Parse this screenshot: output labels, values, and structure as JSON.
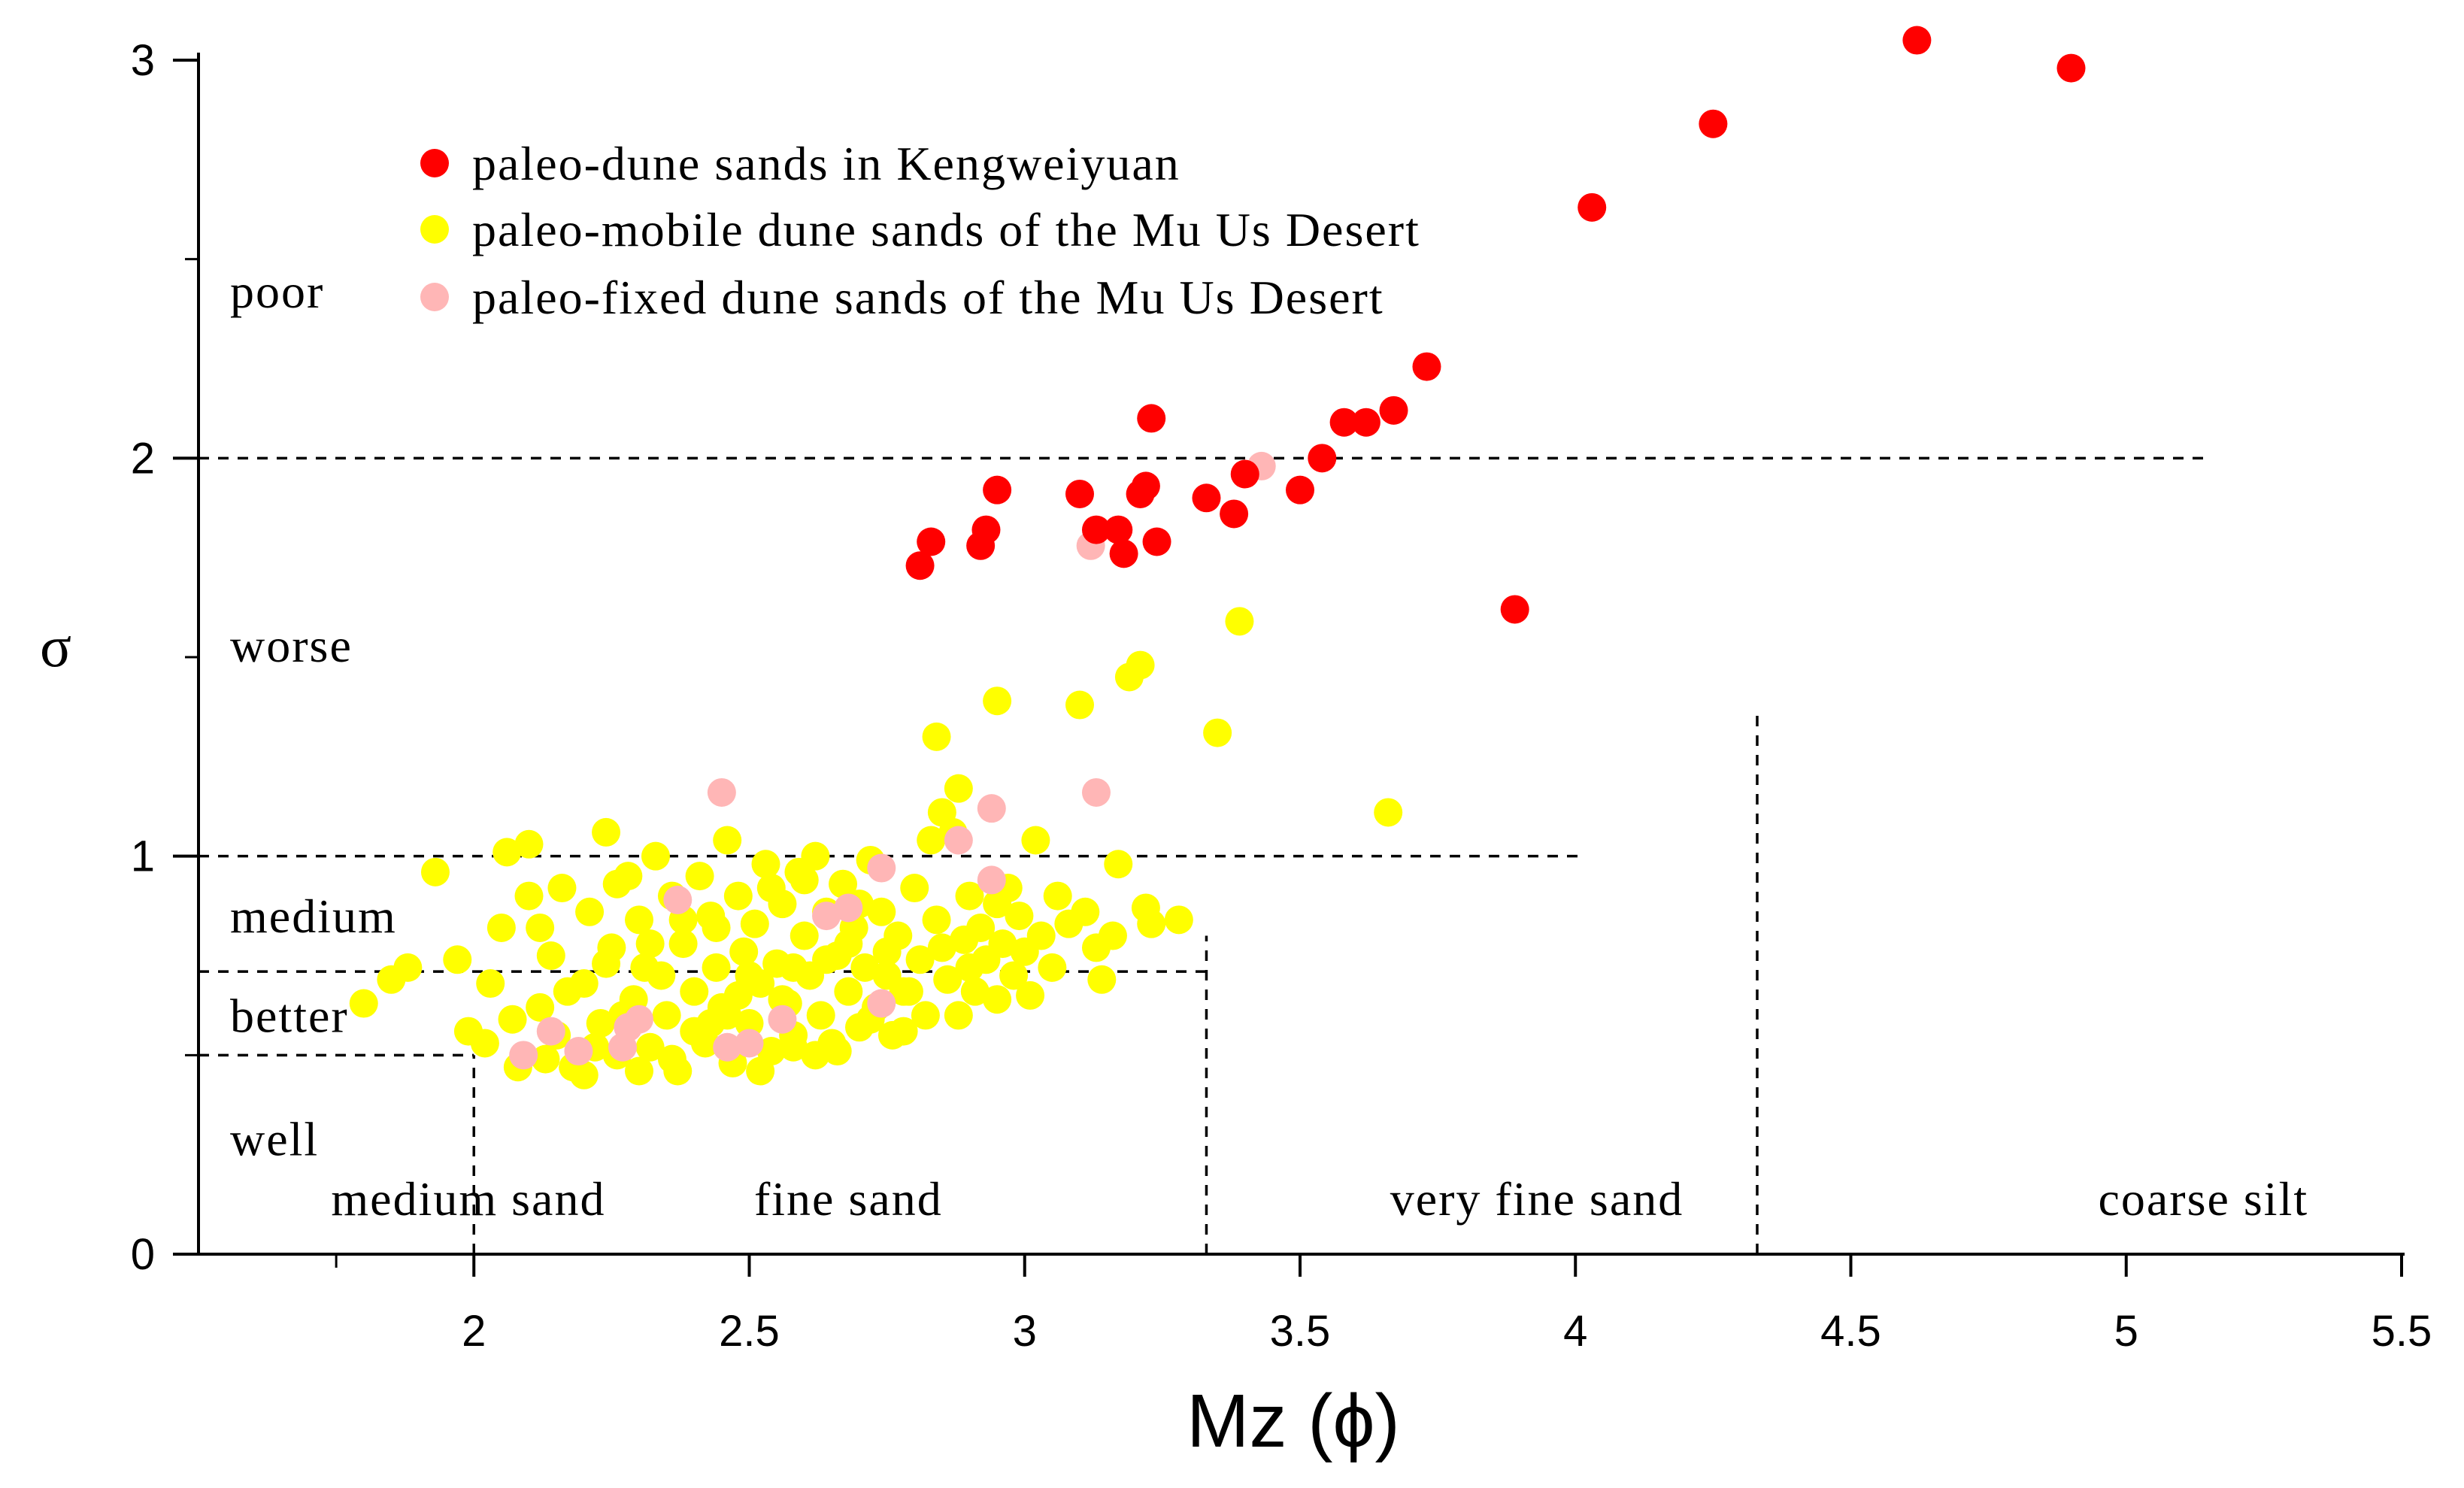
{
  "chart_data": {
    "type": "scatter",
    "xlabel": "Mz (ϕ)",
    "ylabel": "σ",
    "xlim": [
      1.5,
      5.5
    ],
    "ylim": [
      0,
      3
    ],
    "x_ticks": [
      {
        "value": 2,
        "label": "2"
      },
      {
        "value": 2.5,
        "label": "2.5"
      },
      {
        "value": 3,
        "label": "3"
      },
      {
        "value": 3.5,
        "label": "3.5"
      },
      {
        "value": 4,
        "label": "4"
      },
      {
        "value": 4.5,
        "label": "4.5"
      },
      {
        "value": 5,
        "label": "5"
      },
      {
        "value": 5.5,
        "label": "5.5"
      }
    ],
    "y_ticks": [
      {
        "value": 0,
        "label": "0"
      },
      {
        "value": 1,
        "label": "1"
      },
      {
        "value": 2,
        "label": "2"
      },
      {
        "value": 3,
        "label": "3"
      }
    ],
    "y_minor_ticks": [
      0.5,
      1.5,
      2.5
    ],
    "legend_position": "top-left",
    "sorting_classes": [
      {
        "label": "poor",
        "y": 2.42
      },
      {
        "label": "worse",
        "y": 1.53
      },
      {
        "label": "medium",
        "y": 0.85
      },
      {
        "label": "better",
        "y": 0.6
      },
      {
        "label": "well",
        "y": 0.29
      }
    ],
    "sorting_boundaries": [
      {
        "y": 2.0,
        "x_from": 1.5,
        "x_to": 5.15
      },
      {
        "y": 1.0,
        "x_from": 1.5,
        "x_to": 4.02
      },
      {
        "y": 0.71,
        "x_from": 1.5,
        "x_to": 3.33
      },
      {
        "y": 0.5,
        "x_from": 1.5,
        "x_to": 2.0
      }
    ],
    "grain_boundaries": [
      {
        "x": 2.0,
        "y_from": 0,
        "y_to": 0.5
      },
      {
        "x": 3.33,
        "y_from": 0,
        "y_to": 0.8
      },
      {
        "x": 4.33,
        "y_from": 0,
        "y_to": 1.37
      }
    ],
    "grain_classes": [
      {
        "label": "medium sand",
        "x": 1.99,
        "y": 0.14
      },
      {
        "label": "fine sand",
        "x": 2.68,
        "y": 0.14
      },
      {
        "label": "very fine sand",
        "x": 3.93,
        "y": 0.14
      },
      {
        "label": "coarse silt",
        "x": 5.14,
        "y": 0.14
      }
    ],
    "series": [
      {
        "name": "paleo-dune sands in Kengweiyuan",
        "color": "#ff0000",
        "points": [
          [
            2.81,
            1.73
          ],
          [
            2.83,
            1.79
          ],
          [
            2.92,
            1.78
          ],
          [
            2.93,
            1.82
          ],
          [
            2.95,
            1.92
          ],
          [
            3.1,
            1.91
          ],
          [
            3.13,
            1.82
          ],
          [
            3.17,
            1.82
          ],
          [
            3.18,
            1.76
          ],
          [
            3.21,
            1.91
          ],
          [
            3.22,
            1.93
          ],
          [
            3.23,
            2.1
          ],
          [
            3.24,
            1.79
          ],
          [
            3.33,
            1.9
          ],
          [
            3.38,
            1.86
          ],
          [
            3.4,
            1.96
          ],
          [
            3.5,
            1.92
          ],
          [
            3.54,
            2.0
          ],
          [
            3.58,
            2.09
          ],
          [
            3.62,
            2.09
          ],
          [
            3.67,
            2.12
          ],
          [
            3.73,
            2.23
          ],
          [
            3.89,
            1.62
          ],
          [
            4.03,
            2.63
          ],
          [
            4.25,
            2.84
          ],
          [
            4.62,
            3.05
          ],
          [
            4.9,
            2.98
          ]
        ]
      },
      {
        "name": "paleo-mobile dune sands of the Mu Us Desert",
        "color": "#ffff00",
        "points": [
          [
            1.8,
            0.63
          ],
          [
            1.85,
            0.69
          ],
          [
            1.88,
            0.72
          ],
          [
            1.93,
            0.96
          ],
          [
            1.97,
            0.74
          ],
          [
            1.99,
            0.56
          ],
          [
            2.02,
            0.53
          ],
          [
            2.03,
            0.68
          ],
          [
            2.05,
            0.82
          ],
          [
            2.06,
            1.01
          ],
          [
            2.1,
            1.03
          ],
          [
            2.08,
            0.47
          ],
          [
            2.1,
            0.9
          ],
          [
            2.12,
            0.62
          ],
          [
            2.14,
            0.75
          ],
          [
            2.15,
            0.55
          ],
          [
            2.16,
            0.92
          ],
          [
            2.18,
            0.47
          ],
          [
            2.2,
            0.68
          ],
          [
            2.21,
            0.86
          ],
          [
            2.23,
            0.58
          ],
          [
            2.24,
            1.06
          ],
          [
            2.25,
            0.77
          ],
          [
            2.26,
            0.5
          ],
          [
            2.28,
            0.95
          ],
          [
            2.29,
            0.64
          ],
          [
            2.3,
            0.84
          ],
          [
            2.31,
            0.72
          ],
          [
            2.32,
            0.52
          ],
          [
            2.33,
            1.0
          ],
          [
            2.35,
            0.6
          ],
          [
            2.36,
            0.9
          ],
          [
            2.37,
            0.46
          ],
          [
            2.38,
            0.78
          ],
          [
            2.4,
            0.66
          ],
          [
            2.41,
            0.95
          ],
          [
            2.42,
            0.53
          ],
          [
            2.43,
            0.85
          ],
          [
            2.44,
            0.72
          ],
          [
            2.45,
            0.62
          ],
          [
            2.46,
            1.04
          ],
          [
            2.47,
            0.48
          ],
          [
            2.48,
            0.9
          ],
          [
            2.49,
            0.76
          ],
          [
            2.5,
            0.58
          ],
          [
            2.51,
            0.83
          ],
          [
            2.52,
            0.68
          ],
          [
            2.53,
            0.98
          ],
          [
            2.54,
            0.51
          ],
          [
            2.55,
            0.73
          ],
          [
            2.56,
            0.88
          ],
          [
            2.57,
            0.63
          ],
          [
            2.58,
            0.55
          ],
          [
            2.59,
            0.96
          ],
          [
            2.6,
            0.8
          ],
          [
            2.61,
            0.7
          ],
          [
            2.62,
            1.0
          ],
          [
            2.63,
            0.6
          ],
          [
            2.64,
            0.86
          ],
          [
            2.65,
            0.53
          ],
          [
            2.66,
            0.75
          ],
          [
            2.67,
            0.93
          ],
          [
            2.68,
            0.66
          ],
          [
            2.69,
            0.82
          ],
          [
            2.7,
            0.57
          ],
          [
            2.71,
            0.72
          ],
          [
            2.72,
            0.99
          ],
          [
            2.73,
            0.62
          ],
          [
            2.74,
            0.86
          ],
          [
            2.75,
            0.7
          ],
          [
            2.76,
            0.55
          ],
          [
            2.77,
            0.8
          ],
          [
            2.78,
            0.66
          ],
          [
            2.8,
            0.92
          ],
          [
            2.81,
            0.74
          ],
          [
            2.82,
            0.6
          ],
          [
            2.83,
            1.04
          ],
          [
            2.84,
            0.84
          ],
          [
            2.85,
            1.11
          ],
          [
            2.86,
            0.69
          ],
          [
            2.87,
            1.06
          ],
          [
            2.88,
            1.17
          ],
          [
            2.89,
            0.79
          ],
          [
            2.9,
            0.9
          ],
          [
            2.91,
            0.66
          ],
          [
            2.92,
            0.82
          ],
          [
            2.93,
            0.74
          ],
          [
            2.95,
            1.39
          ],
          [
            2.95,
            0.88
          ],
          [
            2.96,
            0.78
          ],
          [
            2.98,
            0.7
          ],
          [
            2.99,
            0.85
          ],
          [
            3.01,
            0.65
          ],
          [
            3.02,
            1.04
          ],
          [
            3.03,
            0.8
          ],
          [
            3.05,
            0.72
          ],
          [
            3.06,
            0.9
          ],
          [
            3.08,
            0.83
          ],
          [
            3.1,
            1.38
          ],
          [
            3.11,
            0.86
          ],
          [
            3.13,
            0.77
          ],
          [
            3.14,
            0.69
          ],
          [
            3.16,
            0.8
          ],
          [
            3.17,
            0.98
          ],
          [
            3.19,
            1.45
          ],
          [
            3.21,
            1.48
          ],
          [
            3.22,
            0.87
          ],
          [
            3.23,
            0.83
          ],
          [
            2.84,
            1.3
          ],
          [
            3.28,
            0.84
          ],
          [
            3.35,
            1.31
          ],
          [
            3.39,
            1.59
          ],
          [
            3.66,
            1.11
          ],
          [
            2.2,
            0.45
          ],
          [
            2.3,
            0.46
          ],
          [
            2.36,
            0.49
          ],
          [
            2.52,
            0.46
          ],
          [
            2.58,
            0.52
          ],
          [
            2.62,
            0.5
          ],
          [
            2.66,
            0.51
          ],
          [
            2.78,
            0.56
          ],
          [
            2.88,
            0.6
          ],
          [
            2.95,
            0.64
          ],
          [
            2.22,
            0.52
          ],
          [
            2.27,
            0.6
          ],
          [
            2.4,
            0.56
          ],
          [
            2.48,
            0.65
          ],
          [
            2.58,
            0.72
          ],
          [
            2.68,
            0.78
          ],
          [
            2.7,
            0.88
          ],
          [
            2.54,
            0.92
          ],
          [
            2.44,
            0.82
          ],
          [
            2.34,
            0.7
          ],
          [
            2.17,
            0.66
          ],
          [
            2.12,
            0.82
          ],
          [
            2.26,
            0.93
          ],
          [
            2.38,
            0.84
          ],
          [
            2.46,
            0.6
          ],
          [
            2.56,
            0.64
          ],
          [
            2.6,
            0.94
          ],
          [
            2.75,
            0.76
          ],
          [
            2.9,
            0.72
          ],
          [
            2.97,
            0.92
          ],
          [
            2.79,
            0.66
          ],
          [
            2.07,
            0.59
          ],
          [
            2.13,
            0.49
          ],
          [
            2.32,
            0.78
          ],
          [
            2.5,
            0.7
          ],
          [
            2.64,
            0.74
          ],
          [
            2.72,
            0.59
          ],
          [
            2.85,
            0.77
          ],
          [
            3.0,
            0.76
          ],
          [
            2.43,
            0.58
          ],
          [
            2.24,
            0.73
          ]
        ]
      },
      {
        "name": "paleo-fixed dune sands of the Mu Us Desert",
        "color": "#ffb6b6",
        "points": [
          [
            2.45,
            1.16
          ],
          [
            3.13,
            1.16
          ],
          [
            2.94,
            1.12
          ],
          [
            2.88,
            1.04
          ],
          [
            2.74,
            0.97
          ],
          [
            2.94,
            0.94
          ],
          [
            2.37,
            0.89
          ],
          [
            2.68,
            0.87
          ],
          [
            2.64,
            0.85
          ],
          [
            2.74,
            0.63
          ],
          [
            2.56,
            0.59
          ],
          [
            2.3,
            0.59
          ],
          [
            2.28,
            0.57
          ],
          [
            2.14,
            0.56
          ],
          [
            2.27,
            0.52
          ],
          [
            2.19,
            0.51
          ],
          [
            2.09,
            0.5
          ],
          [
            2.46,
            0.52
          ],
          [
            2.5,
            0.53
          ],
          [
            3.12,
            1.78
          ],
          [
            3.43,
            1.98
          ]
        ]
      }
    ]
  }
}
